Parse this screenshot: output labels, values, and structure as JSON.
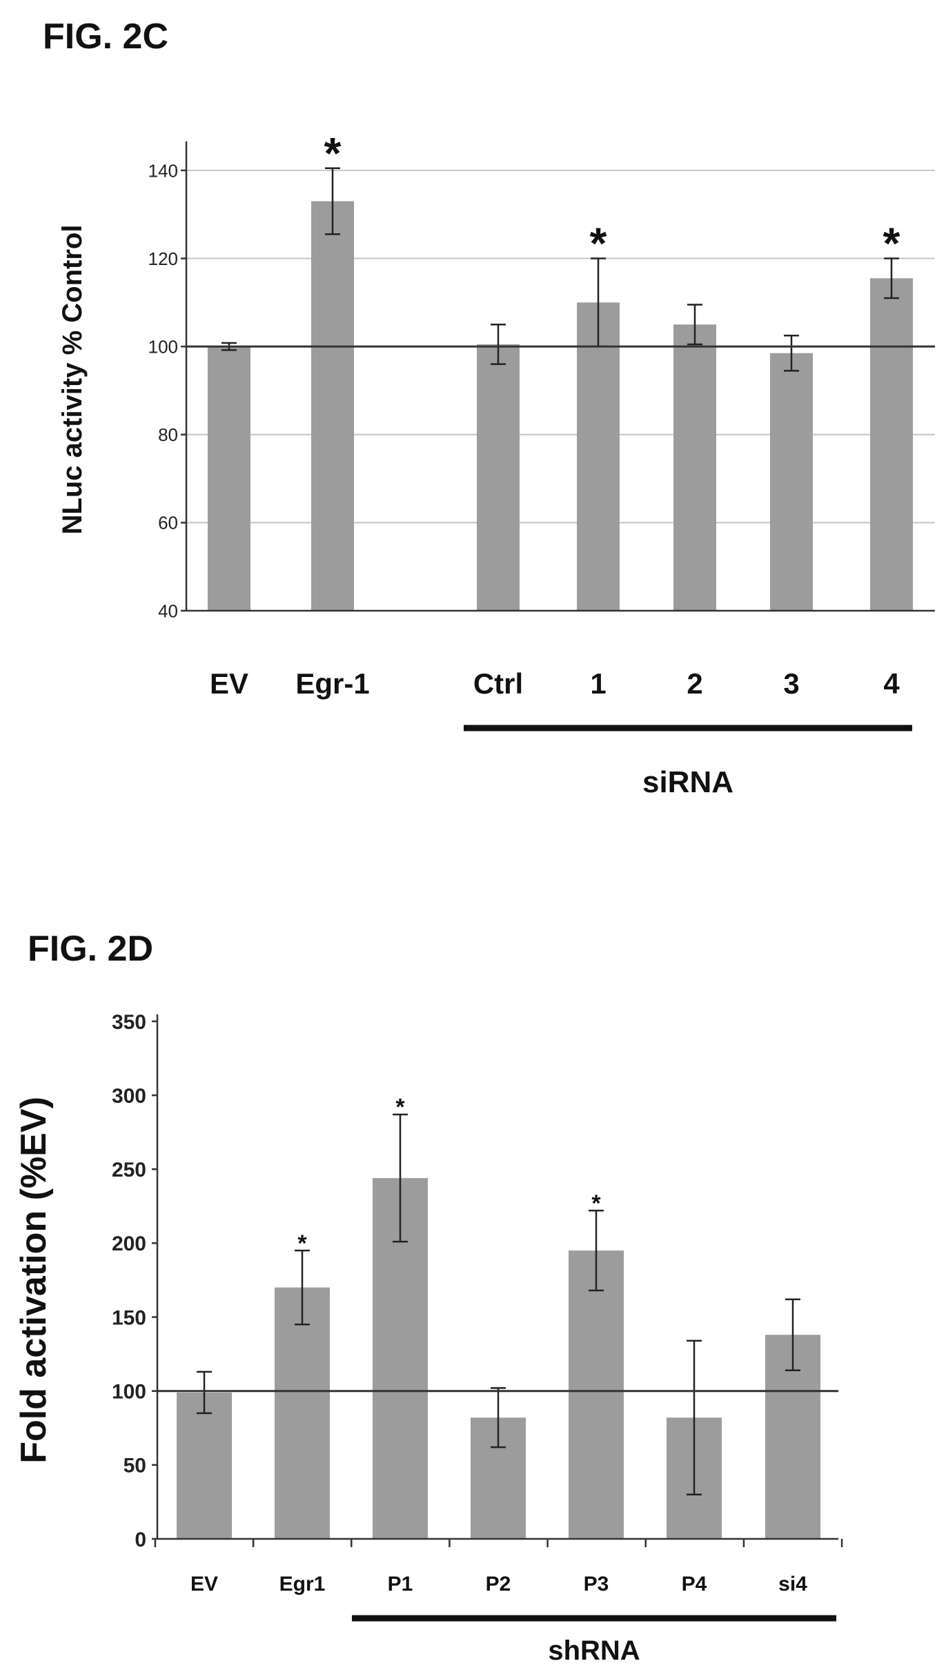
{
  "chart_data": [
    {
      "type": "bar",
      "title": "FIG. 2C",
      "ylabel": "NLuc activity % Control",
      "xlabel": "",
      "ylim": [
        40,
        145
      ],
      "yticks": [
        40,
        60,
        80,
        100,
        120,
        140
      ],
      "grid": true,
      "reference_line": 100,
      "categories": [
        "EV",
        "Egr-1",
        "Ctrl",
        "1",
        "2",
        "3",
        "4"
      ],
      "values": [
        100,
        133,
        100.5,
        110,
        105,
        98.5,
        115.5
      ],
      "errors": [
        0.8,
        7.5,
        4.5,
        10,
        4.5,
        4,
        4.5
      ],
      "significant": [
        "",
        "*",
        "",
        "*",
        "",
        "",
        "*"
      ],
      "group_label": "siRNA"
    },
    {
      "type": "bar",
      "title": "FIG. 2D",
      "ylabel": "Fold activation (%EV)",
      "xlabel": "",
      "ylim": [
        0,
        350
      ],
      "yticks": [
        0,
        50,
        100,
        150,
        200,
        250,
        300,
        350
      ],
      "grid": false,
      "reference_line": 100,
      "categories": [
        "EV",
        "Egr1",
        "P1",
        "P2",
        "P3",
        "P4",
        "si4"
      ],
      "values": [
        99,
        170,
        244,
        82,
        195,
        82,
        138
      ],
      "errors": [
        14,
        25,
        43,
        20,
        27,
        52,
        24
      ],
      "significant": [
        "",
        "*",
        "*",
        "",
        "*",
        "",
        ""
      ],
      "group_label": "shRNA"
    }
  ]
}
